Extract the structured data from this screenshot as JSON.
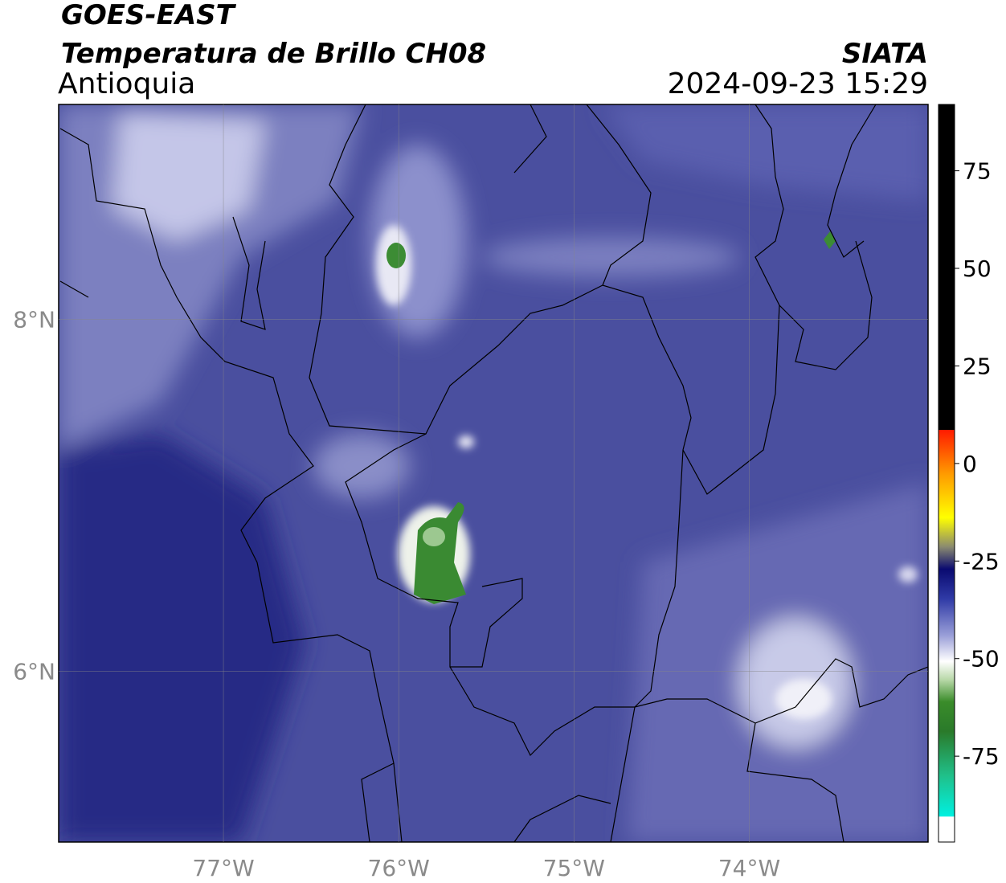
{
  "header": {
    "title": "GOES-EAST",
    "subtitle": "Temperatura de Brillo CH08",
    "region": "Antioquia",
    "source": "SIATA",
    "datetime": "2024-09-23 15:29"
  },
  "map": {
    "xlim": [
      -77.94,
      -72.98
    ],
    "ylim": [
      5.03,
      9.22
    ],
    "xticks": [
      {
        "value": -77,
        "label": "77°W"
      },
      {
        "value": -76,
        "label": "76°W"
      },
      {
        "value": -75,
        "label": "75°W"
      },
      {
        "value": -74,
        "label": "74°W"
      }
    ],
    "yticks": [
      {
        "value": 8,
        "label": "8°N"
      },
      {
        "value": 6,
        "label": "6°N"
      }
    ],
    "grid": true
  },
  "colorbar": {
    "lim": [
      -97,
      92
    ],
    "ticks": [
      75,
      50,
      25,
      0,
      -25,
      -50,
      -75
    ]
  }
}
